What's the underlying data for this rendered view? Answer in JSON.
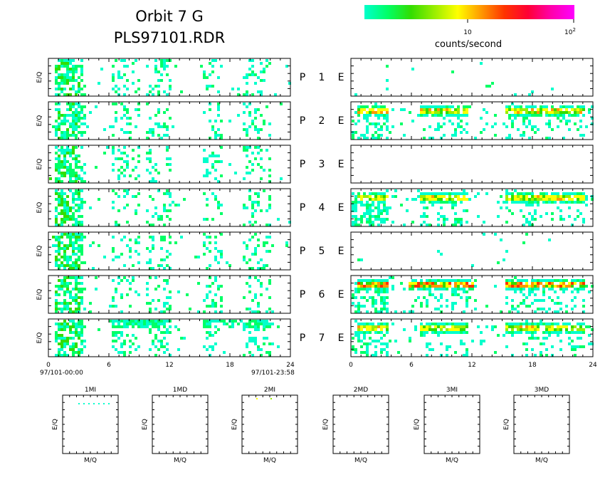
{
  "header": {
    "title_line1": "Orbit 7 G",
    "title_line2": "PLS97101.RDR"
  },
  "colorbar": {
    "label": "counts/second",
    "tick_10": "10",
    "tick_100_base": "10",
    "tick_100_exp": "2",
    "colors": [
      "#00ffcc",
      "#00ff66",
      "#33dd00",
      "#99ee00",
      "#ffff00",
      "#ff9900",
      "#ff3300",
      "#ff0033",
      "#ff00aa",
      "#ff00ff"
    ]
  },
  "rows": [
    {
      "p_label": "P",
      "num": "1",
      "e_label": "E"
    },
    {
      "p_label": "P",
      "num": "2",
      "e_label": "E"
    },
    {
      "p_label": "P",
      "num": "3",
      "e_label": "E"
    },
    {
      "p_label": "P",
      "num": "4",
      "e_label": "E"
    },
    {
      "p_label": "P",
      "num": "5",
      "e_label": "E"
    },
    {
      "p_label": "P",
      "num": "6",
      "e_label": "E"
    },
    {
      "p_label": "P",
      "num": "7",
      "e_label": "E"
    }
  ],
  "ylabel": "E/Q",
  "x_ticks": [
    "0",
    "6",
    "12",
    "18",
    "24"
  ],
  "left_time_start": "97/101-00:00",
  "left_time_end": "97/101-23:58",
  "bottom_panels": [
    {
      "title": "1MI",
      "xlabel": "M/Q",
      "ylabel": "E/Q"
    },
    {
      "title": "1MD",
      "xlabel": "M/Q",
      "ylabel": "E/Q"
    },
    {
      "title": "2MI",
      "xlabel": "M/Q",
      "ylabel": "E/Q"
    },
    {
      "title": "2MD",
      "xlabel": "M/Q",
      "ylabel": "E/Q"
    },
    {
      "title": "3MI",
      "xlabel": "M/Q",
      "ylabel": "E/Q"
    },
    {
      "title": "3MD",
      "xlabel": "M/Q",
      "ylabel": "E/Q"
    }
  ],
  "chart_data": {
    "type": "heatmap",
    "x_range_hours": [
      0,
      24
    ],
    "colorbar_scale": "log",
    "colorbar_range": [
      1,
      100
    ],
    "left_panels_activity_windows_hours": [
      [
        0.5,
        3.5
      ],
      [
        6,
        9
      ],
      [
        9.5,
        12
      ],
      [
        15,
        17
      ],
      [
        19,
        22
      ]
    ],
    "right_panels": [
      {
        "row": 1,
        "level": "sparse"
      },
      {
        "row": 2,
        "level": "moderate",
        "peak_windows_hours": [
          [
            0.5,
            3.5
          ],
          [
            6.5,
            11.5
          ],
          [
            15,
            23
          ]
        ]
      },
      {
        "row": 3,
        "level": "empty"
      },
      {
        "row": 4,
        "level": "moderate",
        "peak_windows_hours": [
          [
            0.5,
            3.5
          ],
          [
            6.5,
            11.5
          ],
          [
            15,
            23
          ]
        ]
      },
      {
        "row": 5,
        "level": "sparse"
      },
      {
        "row": 6,
        "level": "high",
        "peak_windows_hours": [
          [
            0.5,
            3.5
          ],
          [
            5.5,
            12
          ],
          [
            15,
            23
          ]
        ]
      },
      {
        "row": 7,
        "level": "moderate",
        "peak_windows_hours": [
          [
            0.5,
            3.5
          ],
          [
            6.5,
            11.5
          ],
          [
            15,
            23
          ]
        ]
      }
    ]
  }
}
